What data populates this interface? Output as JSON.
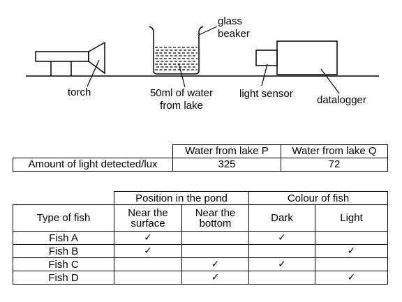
{
  "diagram": {
    "labels": {
      "glass_beaker": "glass\nbeaker",
      "torch": "torch",
      "water_sample": "50ml of water\nfrom lake",
      "light_sensor": "light sensor",
      "datalogger": "datalogger"
    }
  },
  "light_table": {
    "headers": [
      "Water from lake P",
      "Water from lake Q"
    ],
    "row_label": "Amount of light detected/lux",
    "values": [
      "325",
      "72"
    ]
  },
  "fish_table": {
    "group_headers": [
      "Position in the pond",
      "Colour of fish"
    ],
    "col_headers": [
      "Type of fish",
      "Near the\nsurface",
      "Near the\nbottom",
      "Dark",
      "Light"
    ],
    "tick_symbol": "✓",
    "rows": [
      {
        "name": "Fish A",
        "near_surface": "✓",
        "near_bottom": "",
        "dark": "✓",
        "light": ""
      },
      {
        "name": "Fish B",
        "near_surface": "✓",
        "near_bottom": "",
        "dark": "",
        "light": "✓"
      },
      {
        "name": "Fish C",
        "near_surface": "",
        "near_bottom": "✓",
        "dark": "✓",
        "light": ""
      },
      {
        "name": "Fish D",
        "near_surface": "",
        "near_bottom": "✓",
        "dark": "",
        "light": "✓"
      }
    ]
  }
}
